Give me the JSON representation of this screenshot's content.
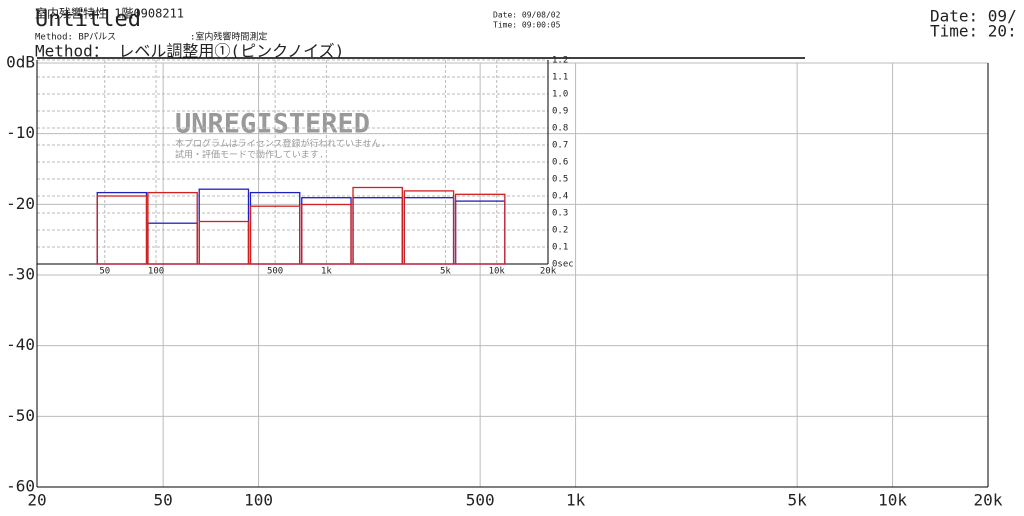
{
  "header": {
    "title": "Untitled",
    "subtitle": "室内残響特性 1階0908211",
    "method": "Method： レベル調整用①(ピンクノイズ)",
    "small_method": "Method: BPパルス",
    "small_note": ":室内残響時間測定",
    "small_date": "Date: 09/08/02",
    "small_time": "Time: 09:00:05",
    "date": "Date: 09/",
    "time": "Time: 20:"
  },
  "watermark": {
    "title": "UNREGISTERED",
    "lines": [
      "本プログラムはライセンス登録が行われていません.",
      "試用・評価モードで動作しています."
    ]
  },
  "chart_data": [
    {
      "type": "line",
      "log_x": true,
      "grid": true,
      "xlim": [
        20,
        20000
      ],
      "xticks": [
        20,
        50,
        100,
        500,
        {
          "value": 1000,
          "label": "1k"
        },
        {
          "value": 5000,
          "label": "5k"
        },
        {
          "value": 10000,
          "label": "10k"
        },
        {
          "value": 20000,
          "label": "20k"
        }
      ],
      "ylim": [
        -60,
        0
      ],
      "yticks": [
        {
          "value": 0,
          "label": "0dB"
        },
        -10,
        -20,
        -30,
        -40,
        -50,
        -60
      ],
      "series": []
    },
    {
      "type": "bar",
      "log_x": true,
      "grid": true,
      "yaxis_side": "right",
      "xlim": [
        20,
        20000
      ],
      "xticks": [
        50,
        100,
        500,
        {
          "value": 1000,
          "label": "1k"
        },
        {
          "value": 5000,
          "label": "5k"
        },
        {
          "value": 10000,
          "label": "10k"
        },
        {
          "value": 20000,
          "label": "20k"
        }
      ],
      "ylim": [
        0,
        1.2
      ],
      "yticks": [
        {
          "value": 0,
          "label": "0sec"
        },
        0.1,
        0.2,
        0.3,
        0.4,
        0.5,
        0.6,
        0.7,
        0.8,
        0.9,
        {
          "value": 1.0,
          "label": "1.0"
        },
        1.1,
        1.2
      ],
      "x": [
        63,
        125,
        250,
        500,
        1000,
        2000,
        4000,
        8000
      ],
      "series": [
        {
          "color": "#2020c0",
          "values": [
            0.42,
            0.24,
            0.44,
            0.42,
            0.39,
            0.39,
            0.39,
            0.37
          ]
        },
        {
          "color": "#d02020",
          "values": [
            0.4,
            0.42,
            0.25,
            0.34,
            0.35,
            0.45,
            0.43,
            0.41
          ]
        }
      ]
    }
  ]
}
